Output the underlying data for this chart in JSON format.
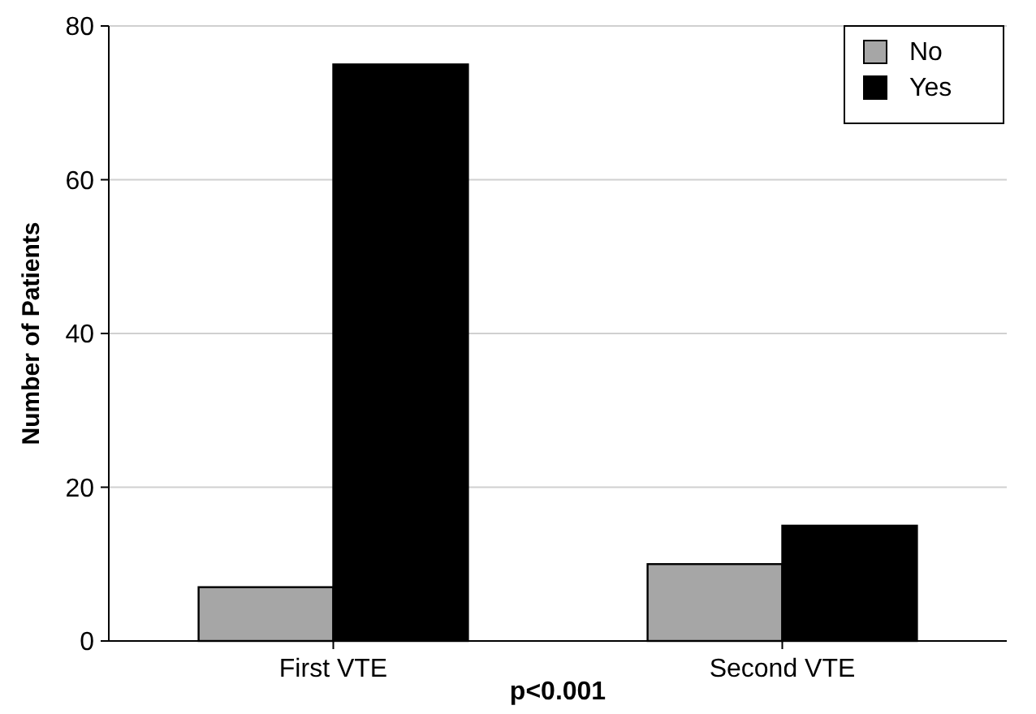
{
  "chart_data": {
    "type": "bar",
    "ylabel": "Number of Patients",
    "categories": [
      "First VTE",
      "Second VTE"
    ],
    "series": [
      {
        "name": "No",
        "color": "#a6a6a6",
        "values": [
          7,
          10
        ]
      },
      {
        "name": "Yes",
        "color": "#000000",
        "values": [
          75,
          15
        ]
      }
    ],
    "ylim": [
      0,
      80
    ],
    "yticks": [
      0,
      20,
      40,
      60,
      80
    ],
    "grid": "y",
    "legend": "top right",
    "annotations": [
      "p<0.001"
    ]
  }
}
